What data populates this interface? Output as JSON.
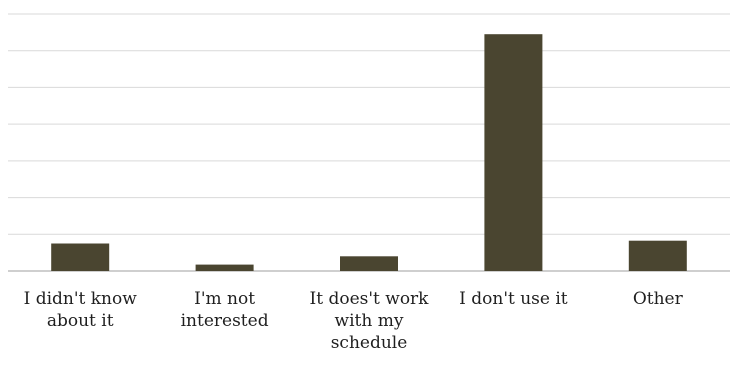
{
  "chart_data": {
    "type": "bar",
    "categories": [
      "I didn't know\nabout it",
      "I'm not\ninterested",
      "It does't work\nwith my\nschedule",
      "I don't use it",
      "Other"
    ],
    "values": [
      3.0,
      0.7,
      1.6,
      25.8,
      3.3
    ],
    "ylim": [
      0,
      28
    ],
    "grid": true,
    "bar_color": "#4a4530",
    "gridline_color": "#d9d9d9",
    "axis_color": "#bfbfbf"
  }
}
